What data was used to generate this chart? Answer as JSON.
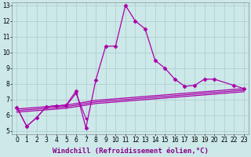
{
  "background_color": "#cce8e8",
  "line_color": "#aa00aa",
  "grid_color": "#aacccc",
  "xlabel": "Windchill (Refroidissement éolien,°C)",
  "xlabel_fontsize": 6.5,
  "tick_fontsize": 5.5,
  "xlim": [
    -0.5,
    23.5
  ],
  "ylim": [
    4.8,
    13.2
  ],
  "yticks": [
    5,
    6,
    7,
    8,
    9,
    10,
    11,
    12,
    13
  ],
  "xticks": [
    0,
    1,
    2,
    3,
    4,
    5,
    6,
    7,
    8,
    9,
    10,
    11,
    12,
    13,
    14,
    15,
    16,
    17,
    18,
    19,
    20,
    21,
    22,
    23
  ],
  "series": [
    {
      "x": [
        0,
        1,
        2,
        3,
        4,
        5,
        6,
        7,
        8,
        9,
        10,
        11,
        12,
        13,
        14,
        15,
        16,
        17,
        18,
        19,
        20,
        22,
        23
      ],
      "y": [
        6.5,
        5.3,
        5.85,
        6.55,
        6.6,
        6.65,
        7.55,
        5.2,
        8.25,
        10.4,
        10.4,
        13.0,
        12.0,
        11.5,
        9.5,
        9.0,
        8.3,
        7.85,
        7.9,
        8.3,
        8.3,
        7.9,
        7.7
      ],
      "marker": "D",
      "markersize": 2.5,
      "linewidth": 0.9
    },
    {
      "x": [
        0,
        3,
        4,
        5,
        6,
        7,
        8,
        9,
        10,
        11,
        12,
        13,
        14,
        15,
        16,
        17,
        18,
        19,
        20,
        21,
        22,
        23
      ],
      "y": [
        6.4,
        6.55,
        6.6,
        6.65,
        6.75,
        6.85,
        6.95,
        7.0,
        7.05,
        7.1,
        7.15,
        7.2,
        7.25,
        7.3,
        7.35,
        7.4,
        7.45,
        7.5,
        7.55,
        7.6,
        7.65,
        7.7
      ],
      "marker": null,
      "markersize": 0,
      "linewidth": 0.9
    },
    {
      "x": [
        0,
        3,
        4,
        5,
        6,
        7,
        8,
        9,
        10,
        11,
        12,
        13,
        14,
        15,
        16,
        17,
        18,
        19,
        20,
        21,
        22,
        23
      ],
      "y": [
        6.3,
        6.45,
        6.5,
        6.55,
        6.65,
        6.75,
        6.85,
        6.9,
        6.95,
        7.0,
        7.05,
        7.1,
        7.15,
        7.2,
        7.25,
        7.3,
        7.35,
        7.4,
        7.45,
        7.5,
        7.55,
        7.6
      ],
      "marker": null,
      "markersize": 0,
      "linewidth": 0.9
    },
    {
      "x": [
        0,
        3,
        4,
        5,
        6,
        7,
        8,
        9,
        10,
        11,
        12,
        13,
        14,
        15,
        16,
        17,
        18,
        19,
        20,
        21,
        22,
        23
      ],
      "y": [
        6.2,
        6.35,
        6.4,
        6.45,
        6.55,
        6.65,
        6.75,
        6.8,
        6.85,
        6.9,
        6.95,
        7.0,
        7.05,
        7.1,
        7.15,
        7.2,
        7.25,
        7.3,
        7.35,
        7.4,
        7.45,
        7.5
      ],
      "marker": null,
      "markersize": 0,
      "linewidth": 0.9
    },
    {
      "x": [
        0,
        1,
        2,
        3,
        4,
        5,
        6,
        7
      ],
      "y": [
        6.5,
        5.3,
        5.85,
        6.55,
        6.6,
        6.6,
        7.4,
        5.8
      ],
      "marker": "D",
      "markersize": 1.8,
      "linewidth": 0.8
    }
  ]
}
